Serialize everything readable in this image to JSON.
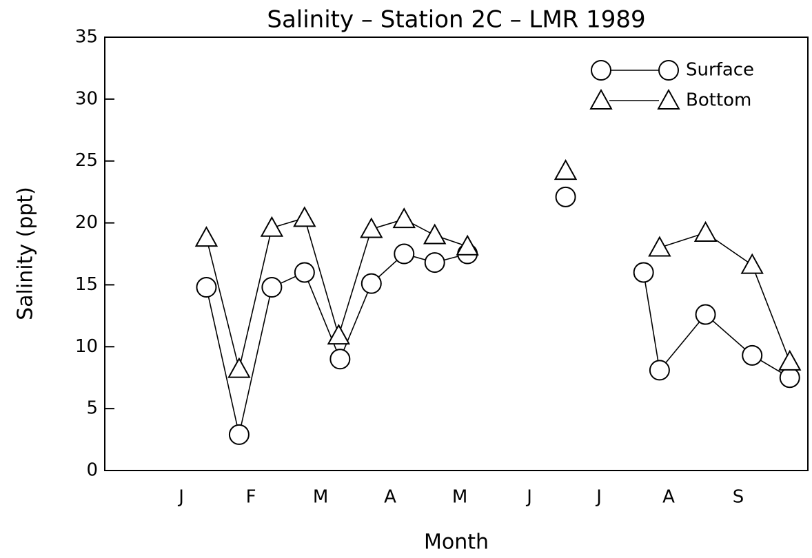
{
  "chart_data": {
    "type": "line",
    "title": "Salinity – Station 2C – LMR 1989",
    "xlabel": "Month",
    "ylabel": "Salinity (ppt)",
    "xlim": [
      -0.1,
      10
    ],
    "ylim": [
      0,
      35
    ],
    "xticks": [
      {
        "value": 1,
        "label": "J"
      },
      {
        "value": 2,
        "label": "F"
      },
      {
        "value": 3,
        "label": "M"
      },
      {
        "value": 4,
        "label": "A"
      },
      {
        "value": 5,
        "label": "M"
      },
      {
        "value": 6,
        "label": "J"
      },
      {
        "value": 7,
        "label": "J"
      },
      {
        "value": 8,
        "label": "A"
      },
      {
        "value": 9,
        "label": "S"
      }
    ],
    "yticks": [
      0,
      5,
      10,
      15,
      20,
      25,
      30,
      35
    ],
    "legend": "upper right",
    "color": "#000000",
    "series": [
      {
        "name": "Surface",
        "marker": "circle",
        "x": [
          1.36,
          1.83,
          2.3,
          2.77,
          3.28,
          3.73,
          4.2,
          4.64,
          5.11,
          null,
          6.52,
          null,
          7.64,
          7.87,
          8.53,
          9.2,
          9.74
        ],
        "values": [
          14.8,
          2.9,
          14.8,
          16.0,
          9.0,
          15.1,
          17.5,
          16.8,
          17.5,
          null,
          22.1,
          null,
          16.0,
          8.1,
          12.6,
          9.3,
          7.5
        ]
      },
      {
        "name": "Bottom",
        "marker": "triangle",
        "x": [
          1.36,
          1.83,
          2.3,
          2.77,
          3.26,
          3.73,
          4.2,
          4.64,
          5.11,
          null,
          6.52,
          null,
          7.87,
          8.53,
          9.2,
          9.74
        ],
        "values": [
          18.8,
          8.2,
          19.6,
          20.4,
          10.9,
          19.5,
          20.3,
          19.0,
          18.1,
          null,
          24.2,
          null,
          18.0,
          19.2,
          16.6,
          8.8
        ]
      }
    ]
  }
}
